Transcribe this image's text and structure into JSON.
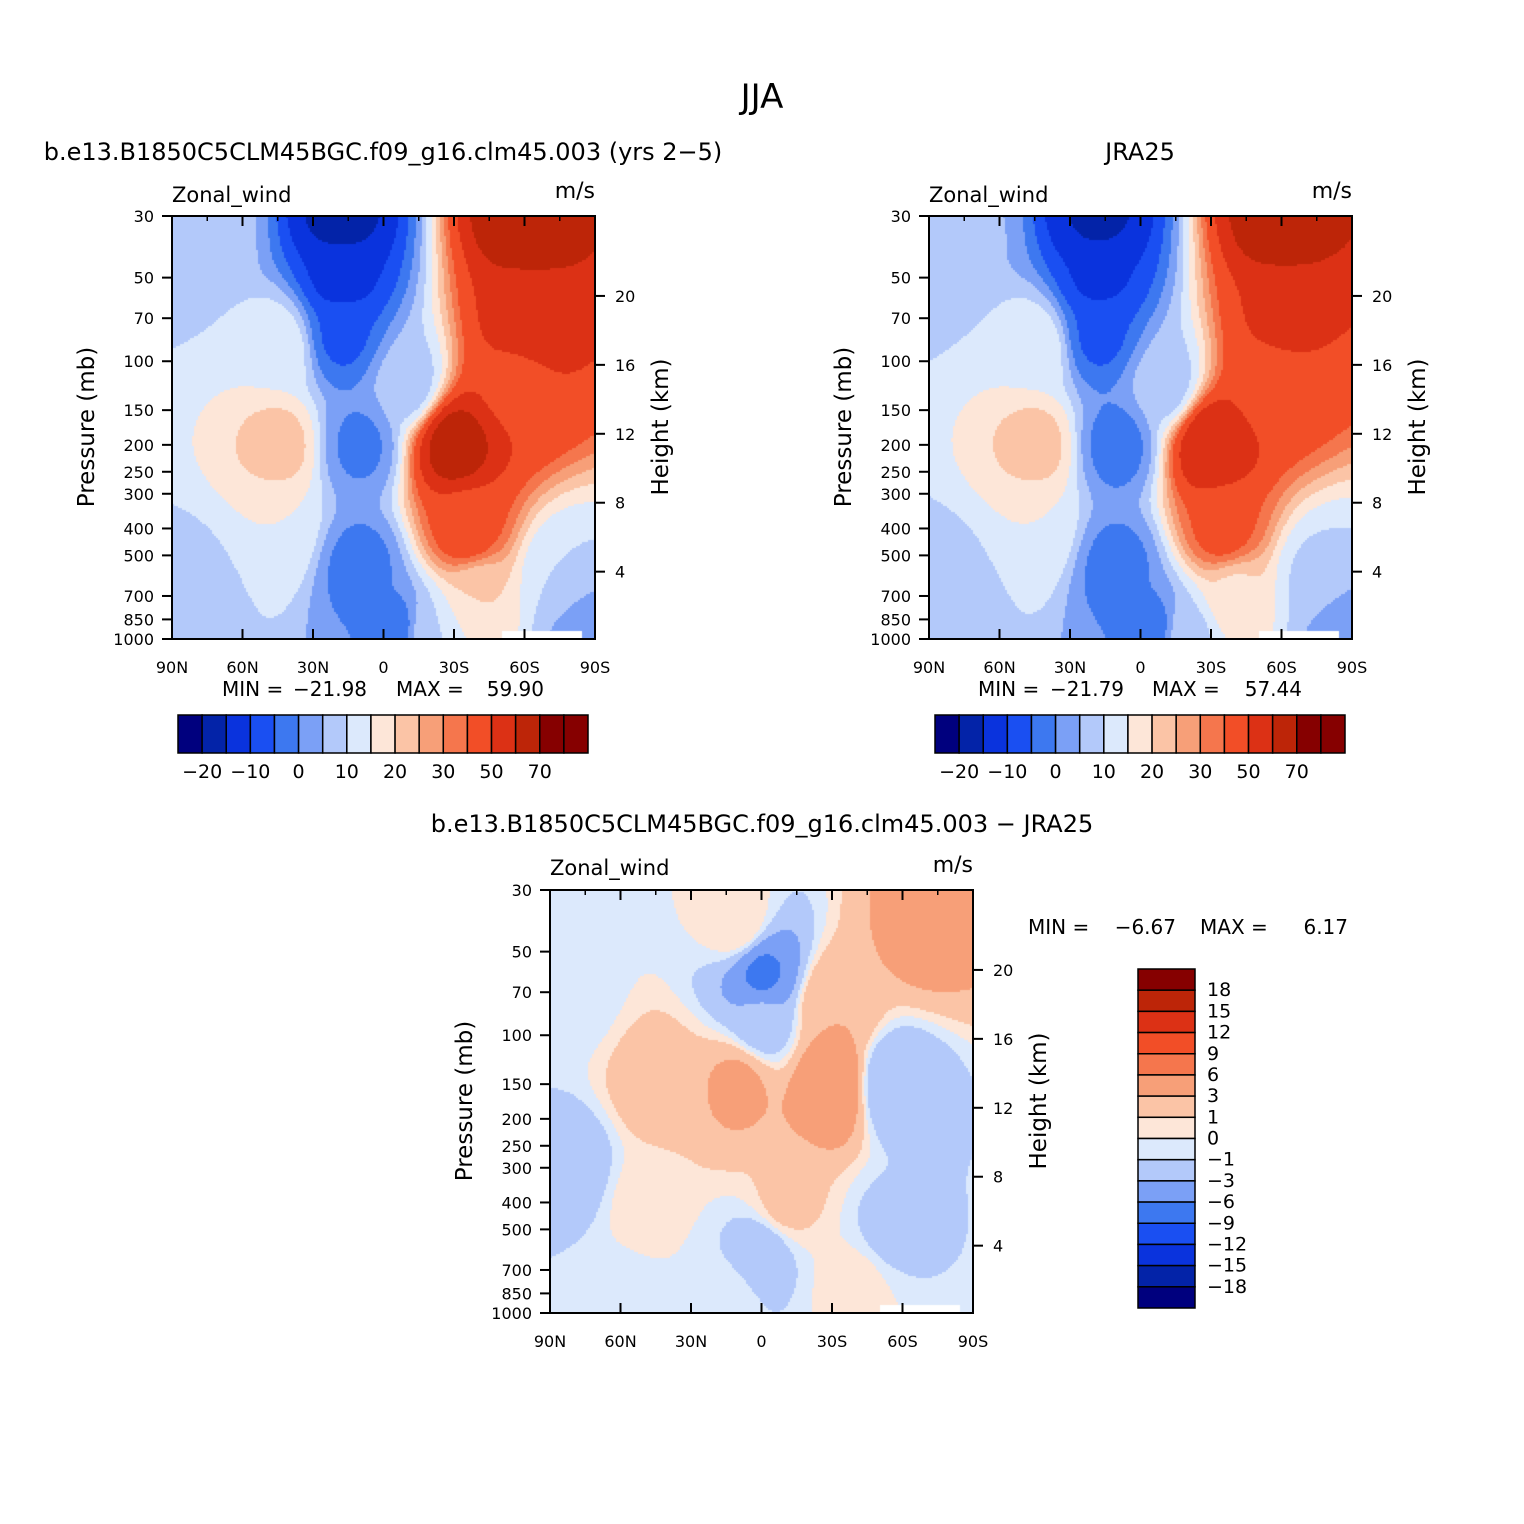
{
  "figure": {
    "title": "JJA"
  },
  "colors": {
    "palette": [
      "#00007e",
      "#0323a8",
      "#0a33dd",
      "#1a4ff2",
      "#3d78f0",
      "#7ba0f6",
      "#b3c9fa",
      "#dce9fc",
      "#fde6d8",
      "#fbc4a6",
      "#f79f78",
      "#f5764d",
      "#f24e27",
      "#dc3115",
      "#bd2508",
      "#860000"
    ],
    "missing": "#ffffff"
  },
  "chart_data": [
    {
      "type": "contour",
      "title": "b.e13.B1850C5CLM45BGC.f09_g16.clm45.003 (yrs 2−5)",
      "variable": "Zonal_wind",
      "units": "m/s",
      "ylabel": "Pressure (mb)",
      "ylabel_right": "Height (km)",
      "x_ticks": [
        "90N",
        "60N",
        "30N",
        "0",
        "30S",
        "60S",
        "90S"
      ],
      "y_ticks": [
        "30",
        "50",
        "70",
        "100",
        "150",
        "200",
        "250",
        "300",
        "400",
        "500",
        "700",
        "850",
        "1000"
      ],
      "height_ticks": [
        "4",
        "8",
        "12",
        "16",
        "20"
      ],
      "stats": {
        "min_label": "MIN =",
        "min": "−21.98",
        "max_label": "MAX =",
        "max": "59.90"
      },
      "colorbar_labels": [
        "−20",
        "−10",
        "0",
        "10",
        "20",
        "30",
        "50",
        "70"
      ],
      "levels": [
        -25,
        -20,
        -15,
        -10,
        -5,
        0,
        5,
        10,
        15,
        20,
        25,
        30,
        40,
        50,
        60,
        70
      ],
      "features": [
        {
          "x": 18,
          "y": 30,
          "value": -22
        },
        {
          "x": 18,
          "y": 50,
          "value": -17
        },
        {
          "x": 18,
          "y": 80,
          "value": -11
        },
        {
          "x": 10,
          "y": 200,
          "value": -6
        },
        {
          "x": 10,
          "y": 550,
          "value": -7
        },
        {
          "x": -5,
          "y": 900,
          "value": -7
        },
        {
          "x": 45,
          "y": 200,
          "value": 17
        },
        {
          "x": 45,
          "y": 90,
          "value": 9
        },
        {
          "x": 45,
          "y": 400,
          "value": 10
        },
        {
          "x": 75,
          "y": 35,
          "value": 3
        },
        {
          "x": 80,
          "y": 700,
          "value": 2
        },
        {
          "x": -30,
          "y": 200,
          "value": 55
        },
        {
          "x": -35,
          "y": 400,
          "value": 35
        },
        {
          "x": -40,
          "y": 700,
          "value": 15
        },
        {
          "x": -60,
          "y": 30,
          "value": 58
        },
        {
          "x": -60,
          "y": 70,
          "value": 45
        },
        {
          "x": -55,
          "y": 120,
          "value": 38
        },
        {
          "x": -10,
          "y": 120,
          "value": 2
        },
        {
          "x": -75,
          "y": 600,
          "value": 5
        },
        {
          "x": -85,
          "y": 900,
          "value": -3
        },
        {
          "x": -20,
          "y": 950,
          "value": 5
        }
      ]
    },
    {
      "type": "contour",
      "title": "JRA25",
      "variable": "Zonal_wind",
      "units": "m/s",
      "ylabel": "Pressure (mb)",
      "ylabel_right": "Height (km)",
      "x_ticks": [
        "90N",
        "60N",
        "30N",
        "0",
        "30S",
        "60S",
        "90S"
      ],
      "y_ticks": [
        "30",
        "50",
        "70",
        "100",
        "150",
        "200",
        "250",
        "300",
        "400",
        "500",
        "700",
        "850",
        "1000"
      ],
      "height_ticks": [
        "4",
        "8",
        "12",
        "16",
        "20"
      ],
      "stats": {
        "min_label": "MIN =",
        "min": "−21.79",
        "max_label": "MAX =",
        "max": "57.44"
      },
      "colorbar_labels": [
        "−20",
        "−10",
        "0",
        "10",
        "20",
        "30",
        "50",
        "70"
      ],
      "levels": [
        -25,
        -20,
        -15,
        -10,
        -5,
        0,
        5,
        10,
        15,
        20,
        25,
        30,
        40,
        50,
        60,
        70
      ],
      "features": [
        {
          "x": 18,
          "y": 30,
          "value": -21
        },
        {
          "x": 18,
          "y": 50,
          "value": -16
        },
        {
          "x": 18,
          "y": 80,
          "value": -11
        },
        {
          "x": 10,
          "y": 200,
          "value": -7
        },
        {
          "x": 10,
          "y": 550,
          "value": -7
        },
        {
          "x": -5,
          "y": 900,
          "value": -7
        },
        {
          "x": 45,
          "y": 200,
          "value": 17
        },
        {
          "x": 45,
          "y": 90,
          "value": 9
        },
        {
          "x": 45,
          "y": 400,
          "value": 10
        },
        {
          "x": 75,
          "y": 35,
          "value": 1
        },
        {
          "x": 80,
          "y": 700,
          "value": 1
        },
        {
          "x": -30,
          "y": 200,
          "value": 50
        },
        {
          "x": -35,
          "y": 400,
          "value": 33
        },
        {
          "x": -40,
          "y": 700,
          "value": 14
        },
        {
          "x": -60,
          "y": 30,
          "value": 57
        },
        {
          "x": -60,
          "y": 70,
          "value": 42
        },
        {
          "x": -55,
          "y": 120,
          "value": 36
        },
        {
          "x": -10,
          "y": 120,
          "value": 2
        },
        {
          "x": -75,
          "y": 600,
          "value": 4
        },
        {
          "x": -85,
          "y": 900,
          "value": -3
        },
        {
          "x": -20,
          "y": 950,
          "value": 4
        }
      ]
    },
    {
      "type": "contour",
      "title": "b.e13.B1850C5CLM45BGC.f09_g16.clm45.003 − JRA25",
      "variable": "Zonal_wind",
      "units": "m/s",
      "ylabel": "Pressure (mb)",
      "ylabel_right": "Height (km)",
      "x_ticks": [
        "90N",
        "60N",
        "30N",
        "0",
        "30S",
        "60S",
        "90S"
      ],
      "y_ticks": [
        "30",
        "50",
        "70",
        "100",
        "150",
        "200",
        "250",
        "300",
        "400",
        "500",
        "700",
        "850",
        "1000"
      ],
      "height_ticks": [
        "4",
        "8",
        "12",
        "16",
        "20"
      ],
      "stats": {
        "min_label": "MIN =",
        "min": "−6.67",
        "max_label": "MAX =",
        "max": "6.17"
      },
      "colorbar_labels": [
        "18",
        "15",
        "12",
        "9",
        "6",
        "3",
        "1",
        "0",
        "−1",
        "−3",
        "−6",
        "−9",
        "−12",
        "−15",
        "−18"
      ],
      "levels": [
        -18,
        -15,
        -12,
        -9,
        -6,
        -3,
        -1,
        0,
        1,
        3,
        6,
        9,
        12,
        15,
        18
      ],
      "features": [
        {
          "x": 0,
          "y": 60,
          "value": -6.5
        },
        {
          "x": 0,
          "y": 90,
          "value": -2
        },
        {
          "x": -30,
          "y": 150,
          "value": 6
        },
        {
          "x": -30,
          "y": 80,
          "value": 3
        },
        {
          "x": 10,
          "y": 150,
          "value": 3.5
        },
        {
          "x": 45,
          "y": 150,
          "value": 2
        },
        {
          "x": 50,
          "y": 400,
          "value": 0.5
        },
        {
          "x": 80,
          "y": 300,
          "value": -2
        },
        {
          "x": 80,
          "y": 70,
          "value": -0.5
        },
        {
          "x": -55,
          "y": 150,
          "value": -3
        },
        {
          "x": -55,
          "y": 500,
          "value": -1.5
        },
        {
          "x": -70,
          "y": 40,
          "value": 4
        },
        {
          "x": -10,
          "y": 400,
          "value": 1.5
        },
        {
          "x": 0,
          "y": 600,
          "value": -2
        },
        {
          "x": 15,
          "y": 900,
          "value": -0.5
        },
        {
          "x": -40,
          "y": 800,
          "value": 0.5
        },
        {
          "x": 60,
          "y": 900,
          "value": -0.5
        },
        {
          "x": 10,
          "y": 40,
          "value": 1
        }
      ]
    }
  ]
}
